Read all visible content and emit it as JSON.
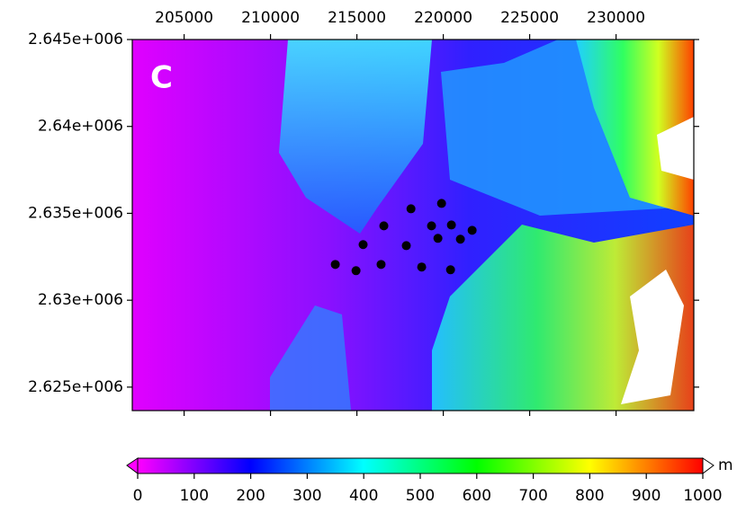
{
  "chart_data": {
    "type": "scatter",
    "label": "C",
    "color": "#000000",
    "x": [
      213750,
      214950,
      215360,
      216400,
      216560,
      217860,
      218130,
      218750,
      219320,
      219690,
      219900,
      220420,
      220470,
      220990,
      221670
    ],
    "values": [
      2632060,
      2631700,
      2633200,
      2632060,
      2634280,
      2633140,
      2635260,
      2631910,
      2634280,
      2633560,
      2635570,
      2631750,
      2634330,
      2633510,
      2634020
    ],
    "xlim": [
      202000,
      234500
    ],
    "ylim": [
      2623650,
      2645000
    ],
    "xticks": [
      205000,
      210000,
      215000,
      220000,
      225000,
      230000
    ],
    "yticks": [
      {
        "value": 2625000,
        "label": "2.625e+006"
      },
      {
        "value": 2630000,
        "label": "2.63e+006"
      },
      {
        "value": 2635000,
        "label": "2.635e+006"
      },
      {
        "value": 2640000,
        "label": "2.64e+006"
      },
      {
        "value": 2645000,
        "label": "2.645e+006"
      }
    ],
    "colorbar": {
      "unit": "m",
      "lim": [
        0,
        1000
      ],
      "ticks": [
        0,
        100,
        200,
        300,
        400,
        500,
        600,
        700,
        800,
        900,
        1000
      ],
      "colors": [
        "#ff00ff",
        "#0000ff",
        "#00ffff",
        "#00ff00",
        "#ffff00",
        "#ff0000"
      ]
    }
  }
}
